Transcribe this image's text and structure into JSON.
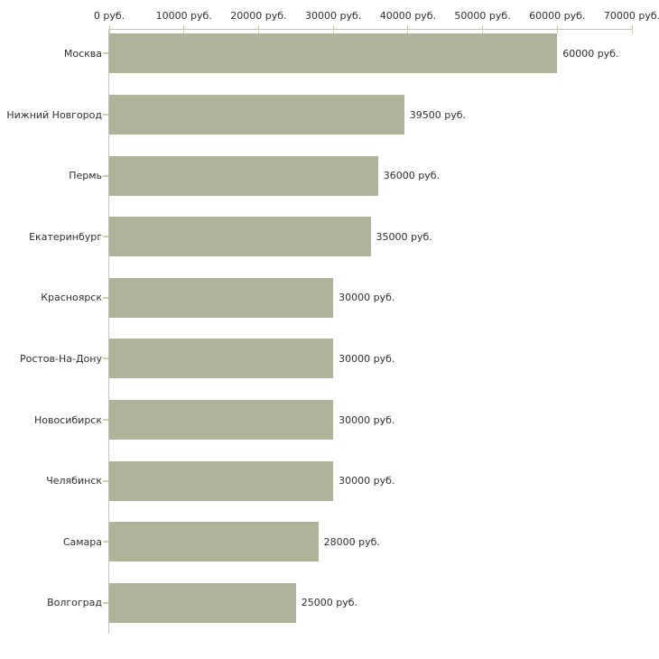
{
  "chart_data": {
    "type": "bar",
    "orientation": "horizontal",
    "title": "",
    "xlabel": "",
    "ylabel": "",
    "unit": "руб.",
    "categories": [
      "Москва",
      "Нижний Новгород",
      "Пермь",
      "Екатеринбург",
      "Красноярск",
      "Ростов-На-Дону",
      "Новосибирск",
      "Челябинск",
      "Самара",
      "Волгоград"
    ],
    "values": [
      60000,
      39500,
      36000,
      35000,
      30000,
      30000,
      30000,
      30000,
      28000,
      25000
    ],
    "value_labels": [
      "60000 руб.",
      "39500 руб.",
      "36000 руб.",
      "35000 руб.",
      "30000 руб.",
      "30000 руб.",
      "30000 руб.",
      "30000 руб.",
      "28000 руб.",
      "25000 руб."
    ],
    "x_tick_values": [
      0,
      10000,
      20000,
      30000,
      40000,
      50000,
      60000,
      70000
    ],
    "x_tick_labels": [
      "0 руб.",
      "10000 руб.",
      "20000 руб.",
      "30000 руб.",
      "40000 руб.",
      "50000 руб.",
      "60000 руб.",
      "70000 руб."
    ],
    "xlim": [
      0,
      70000
    ],
    "grid": false,
    "legend": false,
    "axis_position": "top",
    "bar_color": "#aeb39a",
    "axis_line_color": "#c3c3c3",
    "tick_color": "#cfcfa6",
    "text_color": "#2f2f2f",
    "background_color": "#ffffff"
  }
}
